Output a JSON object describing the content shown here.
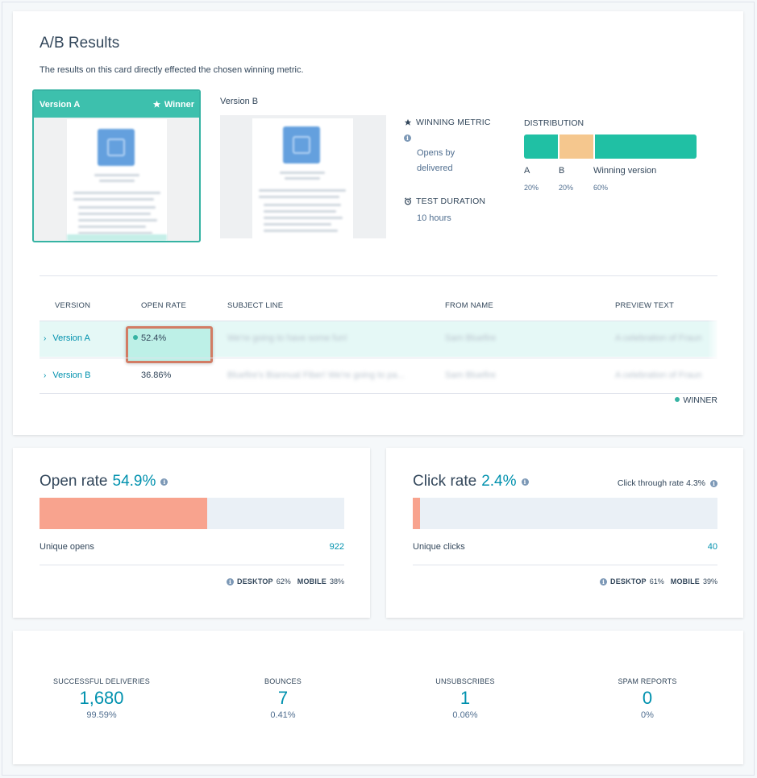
{
  "ab_results": {
    "title": "A/B Results",
    "subtitle": "The results on this card directly effected the chosen winning metric.",
    "version_a_label": "Version A",
    "winner_label": "Winner",
    "version_b_label": "Version B",
    "winning_metric_heading": "WINNING METRIC",
    "winning_metric_value": "Opens by delivered",
    "test_duration_heading": "TEST DURATION",
    "test_duration_value": "10 hours",
    "distribution": {
      "heading": "DISTRIBUTION",
      "segments": [
        {
          "label": "A",
          "percent": "20%",
          "value": 20,
          "color": "#20c0a4"
        },
        {
          "label": "B",
          "percent": "20%",
          "value": 20,
          "color": "#f5c78e"
        },
        {
          "label": "Winning version",
          "percent": "60%",
          "value": 60,
          "color": "#20c0a4"
        }
      ]
    }
  },
  "table": {
    "headers": [
      "VERSION",
      "OPEN RATE",
      "SUBJECT LINE",
      "FROM NAME",
      "PREVIEW TEXT"
    ],
    "rows": [
      {
        "version": "Version A",
        "open_rate": "52.4%",
        "subject": "We're going to have some fun!",
        "from": "Sam Bluefire",
        "preview": "A celebration of Fraun"
      },
      {
        "version": "Version B",
        "open_rate": "36.86%",
        "subject": "Bluefire's Biannual Fiber! We're going to pa...",
        "from": "Sam Bluefire",
        "preview": "A celebration of Fraun"
      }
    ],
    "winner_legend": "WINNER"
  },
  "open_rate": {
    "title": "Open rate",
    "value": "54.9%",
    "fill_percent": 54.9,
    "metric_label": "Unique opens",
    "metric_value": "922",
    "desktop_label": "DESKTOP",
    "desktop_value": "62%",
    "mobile_label": "MOBILE",
    "mobile_value": "38%"
  },
  "click_rate": {
    "title": "Click rate",
    "value": "2.4%",
    "fill_percent": 2.4,
    "ctr_label": "Click through rate 4.3%",
    "metric_label": "Unique clicks",
    "metric_value": "40",
    "desktop_label": "DESKTOP",
    "desktop_value": "61%",
    "mobile_label": "MOBILE",
    "mobile_value": "39%"
  },
  "stats": [
    {
      "label": "SUCCESSFUL DELIVERIES",
      "value": "1,680",
      "percent": "99.59%"
    },
    {
      "label": "BOUNCES",
      "value": "7",
      "percent": "0.41%"
    },
    {
      "label": "UNSUBSCRIBES",
      "value": "1",
      "percent": "0.06%"
    },
    {
      "label": "SPAM REPORTS",
      "value": "0",
      "percent": "0%"
    }
  ],
  "colors": {
    "accent": "#0091ae",
    "teal": "#36b3a3",
    "salmon": "#f8a38e",
    "peach": "#f5c78e",
    "text": "#33475b"
  }
}
